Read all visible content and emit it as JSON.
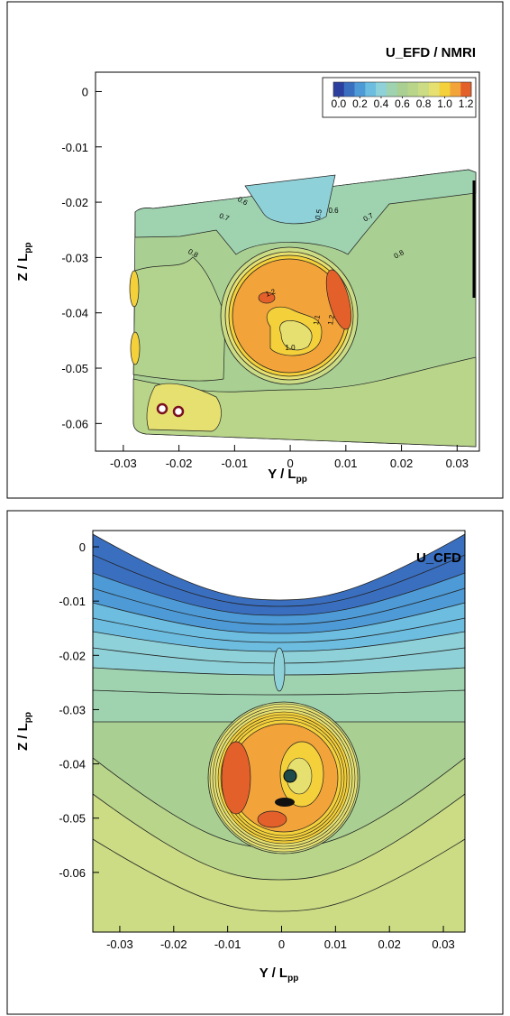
{
  "chart_data": [
    {
      "type": "contour",
      "title": "U_EFD / NMRI",
      "xlabel": {
        "text": "Y / L",
        "subscript": "pp"
      },
      "ylabel": {
        "text": "Z / L",
        "subscript": "pp"
      },
      "xlim": [
        -0.035,
        0.034
      ],
      "ylim": [
        -0.065,
        0.0035
      ],
      "xticks": [
        -0.03,
        -0.02,
        -0.01,
        0,
        0.01,
        0.02,
        0.03
      ],
      "yticks": [
        0,
        -0.01,
        -0.02,
        -0.03,
        -0.04,
        -0.05,
        -0.06
      ],
      "colorbar": {
        "colors": [
          "#2c3f9e",
          "#3a6fc0",
          "#4d9ad6",
          "#6cbde0",
          "#8fd1d8",
          "#9fd3b0",
          "#a9cf92",
          "#b8d58a",
          "#cbdc84",
          "#e6e070",
          "#f4d03a",
          "#f2a43a",
          "#e4602a"
        ],
        "clim": [
          -0.05,
          1.25
        ],
        "ticks": [
          {
            "value": 0,
            "label": "0.0"
          },
          {
            "value": 0.2,
            "label": "0.2"
          },
          {
            "value": 0.4,
            "label": "0.4"
          },
          {
            "value": 0.6,
            "label": "0.6"
          },
          {
            "value": 0.8,
            "label": "0.8"
          },
          {
            "value": 1,
            "label": "1.0"
          },
          {
            "value": 1.2,
            "label": "1.2"
          }
        ]
      },
      "contour_labels": {
        "values": [
          0.5,
          0.6,
          0.6,
          0.7,
          0.7,
          0.8,
          0.8,
          1.2,
          1.2,
          1.1,
          1
        ],
        "value_labels": [
          "0.5",
          "0.6",
          "0.6",
          "0.7",
          "0.7",
          "0.8",
          "0.8",
          "1.2",
          "1.2",
          "1.1",
          "1.0"
        ]
      }
    },
    {
      "type": "contour",
      "title": "U_CFD",
      "xlabel": {
        "text": "Y / L",
        "subscript": "pp"
      },
      "ylabel": {
        "text": "Z / L",
        "subscript": "pp"
      },
      "xlim": [
        -0.035,
        0.034
      ],
      "ylim": [
        -0.071,
        0.003
      ],
      "xticks": [
        -0.03,
        -0.02,
        -0.01,
        0,
        0.01,
        0.02,
        0.03
      ],
      "yticks": [
        0,
        -0.01,
        -0.02,
        -0.03,
        -0.04,
        -0.05,
        -0.06
      ]
    }
  ]
}
